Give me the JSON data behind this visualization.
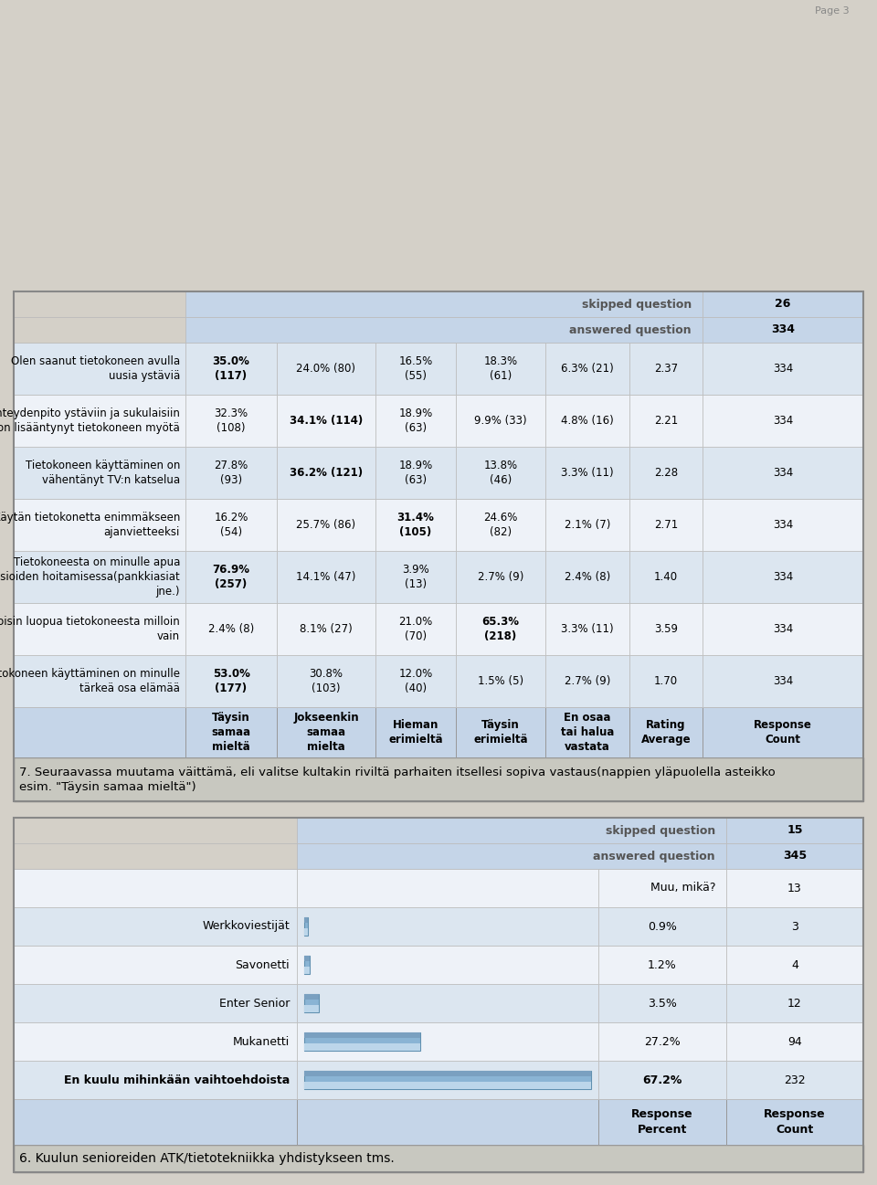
{
  "page_bg": "#d4d0c8",
  "table_outer_bg": "#ffffff",
  "header_bg": "#c5d5e8",
  "row_bg_even": "#dce6f0",
  "row_bg_odd": "#eef2f8",
  "footer_bg": "#c5d5e8",
  "title_bg": "#c8c8c0",
  "border_color": "#999999",
  "q6_title": "6. Kuulun senioreiden ATK/tietotekniikka yhdistykseen tms.",
  "q6_rows": [
    {
      "label": "En kuulu mihinkään vaihtoehdoista",
      "pct": "67.2%",
      "count": "232",
      "bar": 0.672,
      "bold": true
    },
    {
      "label": "Mukanetti",
      "pct": "27.2%",
      "count": "94",
      "bar": 0.272,
      "bold": false
    },
    {
      "label": "Enter Senior",
      "pct": "3.5%",
      "count": "12",
      "bar": 0.035,
      "bold": false
    },
    {
      "label": "Savonetti",
      "pct": "1.2%",
      "count": "4",
      "bar": 0.012,
      "bold": false
    },
    {
      "label": "Werkkoviestijät",
      "pct": "0.9%",
      "count": "3",
      "bar": 0.009,
      "bold": false
    }
  ],
  "q6_muu_count": "13",
  "q6_answered": "345",
  "q6_skipped": "15",
  "q7_title": "7. Seuraavassa muutama väittämä, eli valitse kultakin riviltä parhaiten itsellesi sopiva vastaus(nappien yläpuolella asteikko\nesim. \"Täysin samaa mieltä\")",
  "q7_col_headers": [
    "Täysin\nsamaa\nmieltä",
    "Jokseenkin\nsamaa\nmielta",
    "Hieman\nerimieltä",
    "Täysin\nerimieltä",
    "En osaa\ntai halua\nvastata",
    "Rating\nAverage",
    "Response\nCount"
  ],
  "q7_rows": [
    {
      "label": "Tietokoneen käyttäminen on minulle\ntärkeä osa elämää",
      "c0": "53.0%\n(177)",
      "c1": "30.8%\n(103)",
      "c2": "12.0%\n(40)",
      "c3": "1.5% (5)",
      "c4": "2.7% (9)",
      "c5": "1.70",
      "c6": "334",
      "bold": 0
    },
    {
      "label": "Voisin luopua tietokoneesta milloin\nvain",
      "c0": "2.4% (8)",
      "c1": "8.1% (27)",
      "c2": "21.0%\n(70)",
      "c3": "65.3%\n(218)",
      "c4": "3.3% (11)",
      "c5": "3.59",
      "c6": "334",
      "bold": 3
    },
    {
      "label": "Tietokoneesta on minulle apua\nasioiden hoitamisessa(pankkiasiat\njne.)",
      "c0": "76.9%\n(257)",
      "c1": "14.1% (47)",
      "c2": "3.9%\n(13)",
      "c3": "2.7% (9)",
      "c4": "2.4% (8)",
      "c5": "1.40",
      "c6": "334",
      "bold": 0
    },
    {
      "label": "Käytän tietokonetta enimmäkseen\najanvietteeksi",
      "c0": "16.2%\n(54)",
      "c1": "25.7% (86)",
      "c2": "31.4%\n(105)",
      "c3": "24.6%\n(82)",
      "c4": "2.1% (7)",
      "c5": "2.71",
      "c6": "334",
      "bold": 2
    },
    {
      "label": "Tietokoneen käyttäminen on\nvähentänyt TV:n katselua",
      "c0": "27.8%\n(93)",
      "c1": "36.2% (121)",
      "c2": "18.9%\n(63)",
      "c3": "13.8%\n(46)",
      "c4": "3.3% (11)",
      "c5": "2.28",
      "c6": "334",
      "bold": 1
    },
    {
      "label": "Yhteydenpito ystäviin ja sukulaisiin\non lisääntynyt tietokoneen myötä",
      "c0": "32.3%\n(108)",
      "c1": "34.1% (114)",
      "c2": "18.9%\n(63)",
      "c3": "9.9% (33)",
      "c4": "4.8% (16)",
      "c5": "2.21",
      "c6": "334",
      "bold": 1
    },
    {
      "label": "Olen saanut tietokoneen avulla\nuusia ystäviä",
      "c0": "35.0%\n(117)",
      "c1": "24.0% (80)",
      "c2": "16.5%\n(55)",
      "c3": "18.3%\n(61)",
      "c4": "6.3% (21)",
      "c5": "2.37",
      "c6": "334",
      "bold": 0
    }
  ],
  "q7_answered": "334",
  "q7_skipped": "26"
}
